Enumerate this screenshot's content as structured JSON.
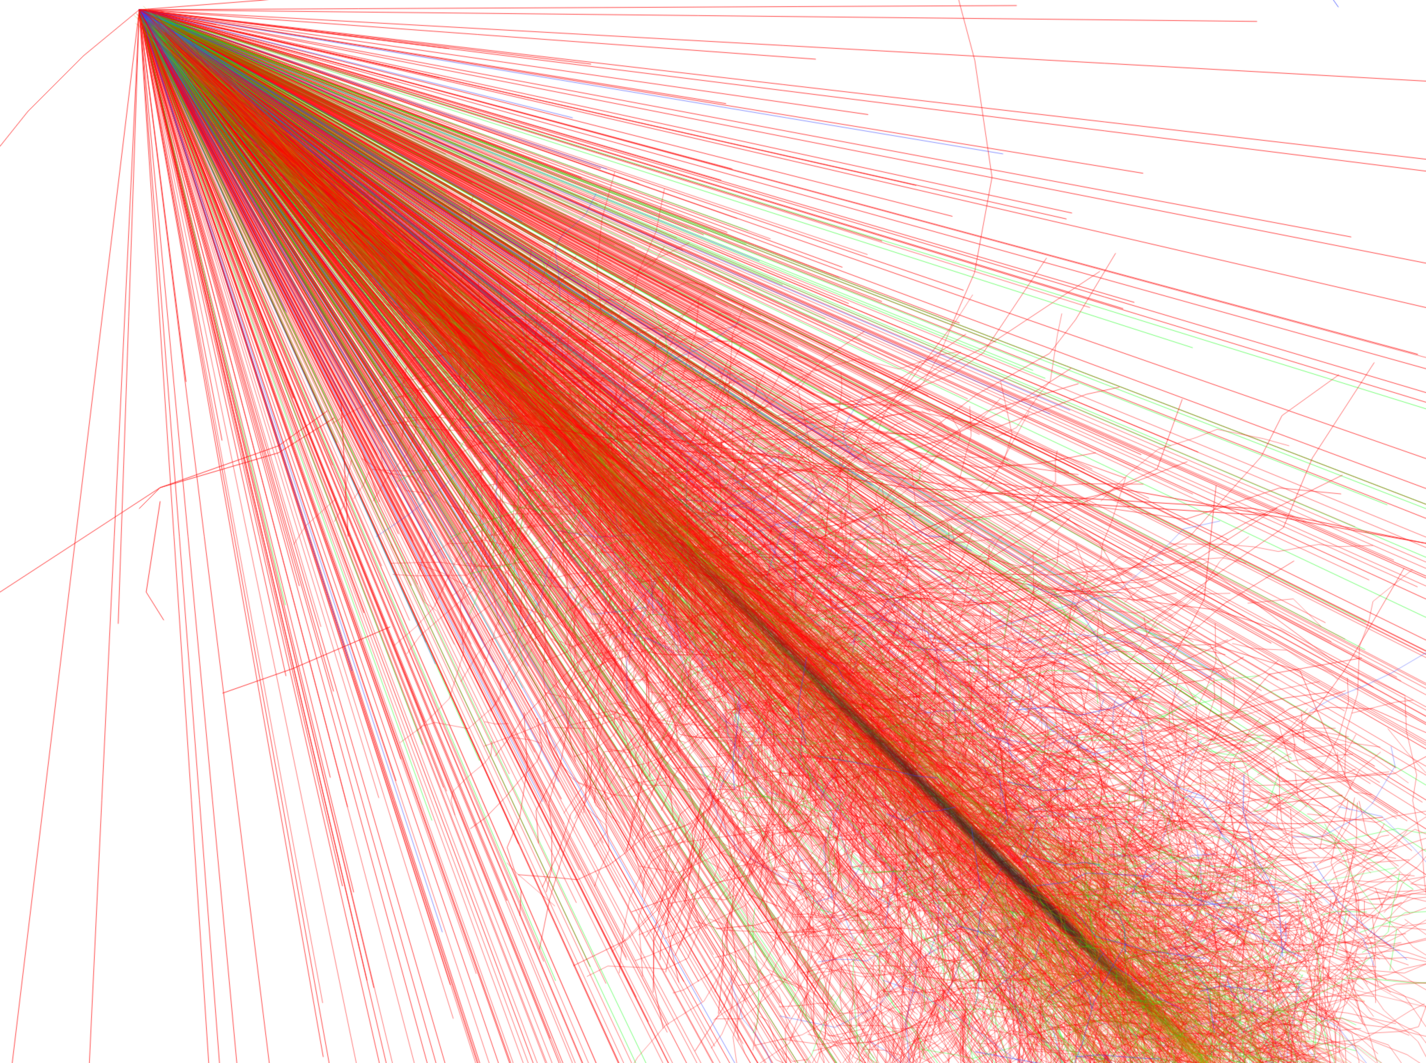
{
  "scene": {
    "background_color": "#ffffff",
    "track_colors": {
      "electron_positron": "#ff0000",
      "gamma": "#00ff00",
      "charged_hadron": "#3344ff",
      "core_shadow": "#1a1a1a",
      "core_glow": "#c8a000"
    }
  }
}
